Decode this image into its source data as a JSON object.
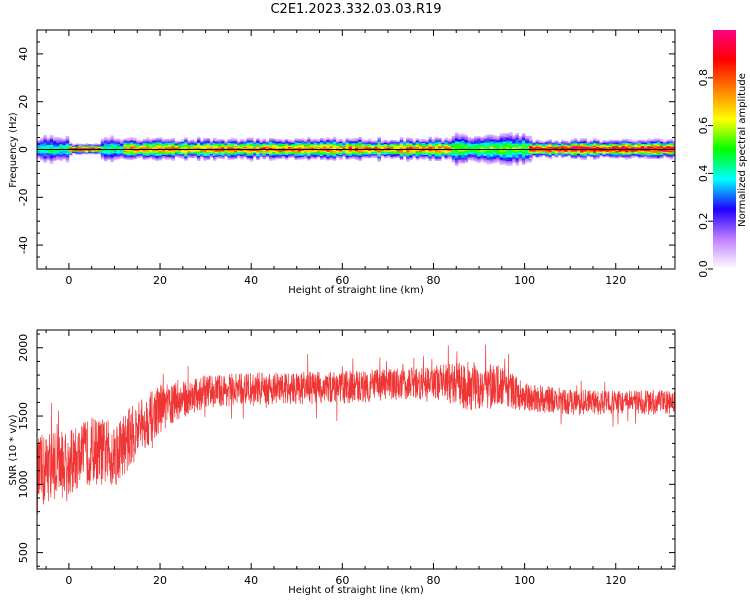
{
  "title": "C2E1.2023.332.03.03.R19",
  "chart_data": [
    {
      "type": "heatmap",
      "name": "spectrogram",
      "xlabel": "Height of straight line (km)",
      "ylabel": "Frequency (Hz)",
      "xlim": [
        -7,
        133
      ],
      "ylim": [
        -50,
        50
      ],
      "xticks": [
        0,
        20,
        40,
        60,
        80,
        100,
        120
      ],
      "yticks": [
        -40,
        -20,
        0,
        20,
        40
      ],
      "grid": false,
      "zero_line_hz": 0,
      "band_center_hz": 0,
      "band_segments": [
        {
          "x_start": -7,
          "x_end": 0,
          "halfwidth_hz": 4,
          "peak": 0.45
        },
        {
          "x_start": 0,
          "x_end": 7,
          "halfwidth_hz": 1.5,
          "peak": 0.95
        },
        {
          "x_start": 7,
          "x_end": 12,
          "halfwidth_hz": 4,
          "peak": 0.45
        },
        {
          "x_start": 12,
          "x_end": 32,
          "halfwidth_hz": 3,
          "peak": 0.75
        },
        {
          "x_start": 32,
          "x_end": 84,
          "halfwidth_hz": 3,
          "peak": 0.8
        },
        {
          "x_start": 84,
          "x_end": 101,
          "halfwidth_hz": 4.5,
          "peak": 0.55
        },
        {
          "x_start": 101,
          "x_end": 133,
          "halfwidth_hz": 2.5,
          "peak": 0.95
        }
      ],
      "colorbar": {
        "label": "Normalized spectral amplitude",
        "range": [
          0,
          1
        ],
        "ticks": [
          "0.0",
          "0.2",
          "0.4",
          "0.6",
          "0.8"
        ],
        "colors": [
          "#ffffff",
          "#c080ff",
          "#2000ff",
          "#00ffff",
          "#00ff00",
          "#ffff00",
          "#ff8000",
          "#ff0000",
          "#ff0080"
        ]
      }
    },
    {
      "type": "line",
      "name": "snr",
      "xlabel": "Height of straight line (km)",
      "ylabel": "SNR (10 * v/v)",
      "xlim": [
        -7,
        133
      ],
      "ylim": [
        380,
        2130
      ],
      "xticks": [
        0,
        20,
        40,
        60,
        80,
        100,
        120
      ],
      "yticks": [
        500,
        1000,
        1500,
        2000
      ],
      "grid": false,
      "color": "#f03535",
      "envelope": [
        {
          "x": -7,
          "mean": 1050,
          "spread": 380
        },
        {
          "x": -4,
          "mean": 1150,
          "spread": 350
        },
        {
          "x": 0,
          "mean": 1150,
          "spread": 320
        },
        {
          "x": 5,
          "mean": 1250,
          "spread": 330
        },
        {
          "x": 10,
          "mean": 1220,
          "spread": 330
        },
        {
          "x": 15,
          "mean": 1400,
          "spread": 280
        },
        {
          "x": 20,
          "mean": 1550,
          "spread": 230
        },
        {
          "x": 25,
          "mean": 1620,
          "spread": 180
        },
        {
          "x": 30,
          "mean": 1680,
          "spread": 160
        },
        {
          "x": 40,
          "mean": 1700,
          "spread": 160
        },
        {
          "x": 60,
          "mean": 1710,
          "spread": 160
        },
        {
          "x": 80,
          "mean": 1750,
          "spread": 160
        },
        {
          "x": 88,
          "mean": 1720,
          "spread": 240
        },
        {
          "x": 95,
          "mean": 1720,
          "spread": 200
        },
        {
          "x": 100,
          "mean": 1640,
          "spread": 140
        },
        {
          "x": 110,
          "mean": 1600,
          "spread": 130
        },
        {
          "x": 120,
          "mean": 1600,
          "spread": 120
        },
        {
          "x": 133,
          "mean": 1600,
          "spread": 120
        }
      ]
    }
  ]
}
